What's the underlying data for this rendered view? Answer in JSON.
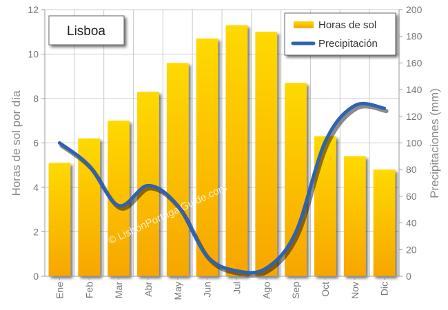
{
  "chart_data": {
    "type": "bar+line",
    "title": "Lisboa",
    "categories": [
      "Ene",
      "Feb",
      "Mar",
      "Abr",
      "May",
      "Jun",
      "Jul",
      "Ago",
      "Sep",
      "Oct",
      "Nov",
      "Dic"
    ],
    "series": [
      {
        "name": "Horas de sol",
        "type": "bar",
        "axis": "left",
        "values": [
          5.1,
          6.2,
          7.0,
          8.3,
          9.6,
          10.7,
          11.3,
          11.0,
          8.7,
          6.3,
          5.4,
          4.8
        ]
      },
      {
        "name": "Precipitación",
        "type": "line",
        "axis": "right",
        "values": [
          100,
          83,
          53,
          68,
          53,
          15,
          4,
          6,
          33,
          101,
          128,
          126
        ]
      }
    ],
    "ylabel_left": "Horas de sol por día",
    "ylabel_right": "Precipitaciones (mm)",
    "ylim_left": [
      0,
      12
    ],
    "yticks_left": [
      "0",
      "2",
      "4",
      "6",
      "8",
      "10",
      "12"
    ],
    "ylim_right": [
      0,
      200
    ],
    "yticks_right": [
      "0",
      "20",
      "40",
      "60",
      "80",
      "100",
      "120",
      "140",
      "160",
      "180",
      "200"
    ],
    "grid": true,
    "legend_position": "top-right",
    "watermark": "© LisbonPortugalGuide.com",
    "colors": {
      "bar_top": "#ffd900",
      "bar_bottom": "#f7a600",
      "line": "#2f62b0",
      "grid": "#cccccc",
      "axis": "#999999"
    }
  }
}
